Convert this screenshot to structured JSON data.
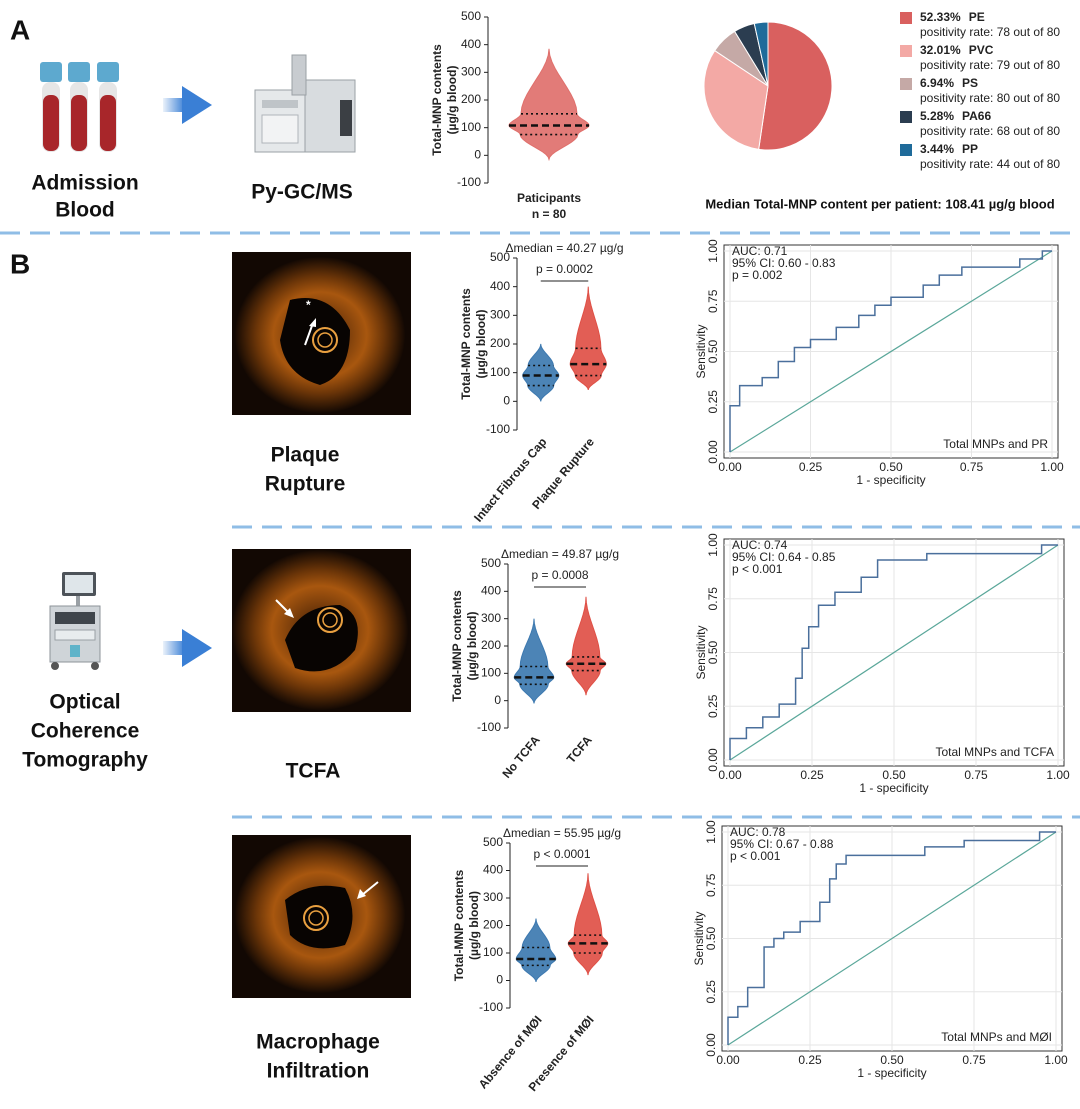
{
  "figure": {
    "panel_a": "A",
    "panel_b": "B",
    "admission_blood": [
      "Admission",
      "Blood"
    ],
    "pygcms": "Py-GC/MS",
    "oct": [
      "Optical",
      "Coherence",
      "Tomography"
    ],
    "plaque_rupture": [
      "Plaque",
      "Rupture"
    ],
    "tcfa": "TCFA",
    "macrophage": [
      "Macrophage",
      "Infiltration"
    ],
    "median_note": "Median Total-MNP content per patient: 108.41 µg/g blood"
  },
  "chart_data": [
    {
      "type": "violin",
      "y_label": [
        "Total-MNP contents",
        "(µg/g  blood)"
      ],
      "categories": [
        "Paticipants"
      ],
      "category_note": "n = 80",
      "groups": [
        {
          "color": "#e0706c",
          "min": -15,
          "q1": 75,
          "median": 108,
          "q3": 150,
          "max": 385
        }
      ],
      "ylim": [
        -100,
        500
      ],
      "yticks": [
        -100,
        0,
        100,
        200,
        300,
        400,
        500
      ]
    },
    {
      "type": "pie",
      "labels": [
        "PE",
        "PVC",
        "PS",
        "PA66",
        "PP"
      ],
      "values": [
        52.33,
        32.01,
        6.94,
        5.28,
        3.44
      ],
      "value_labels": [
        "52.33%",
        "32.01%",
        "6.94%",
        "5.28%",
        "3.44%"
      ],
      "colors": [
        "#d9605f",
        "#f3a9a5",
        "#c5a9a6",
        "#2b3d50",
        "#1f6b9a"
      ],
      "notes": [
        "positivity rate: 78 out of 80",
        "positivity rate: 79 out of 80",
        "positivity rate: 80 out of 80",
        "positivity rate: 68 out of 80",
        "positivity rate: 44 out of 80"
      ]
    },
    {
      "type": "violin",
      "y_label": [
        "Total-MNP contents",
        "(µg/g  blood)"
      ],
      "annotation": "Δmedian = 40.27 µg/g",
      "p_value": "p = 0.0002",
      "categories": [
        "Intact Fibrous Cap",
        "Plaque Rupture"
      ],
      "groups": [
        {
          "color": "#3d79b0",
          "min": 0,
          "q1": 55,
          "median": 90,
          "q3": 125,
          "max": 200
        },
        {
          "color": "#df5046",
          "min": 40,
          "q1": 90,
          "median": 130,
          "q3": 185,
          "max": 400
        }
      ],
      "ylim": [
        -100,
        500
      ],
      "yticks": [
        -100,
        0,
        100,
        200,
        300,
        400,
        500
      ]
    },
    {
      "type": "line",
      "title": "Total MNPs and PR",
      "annotations": [
        "AUC: 0.71",
        "95% CI: 0.60 - 0.83",
        "p = 0.002"
      ],
      "xlabel": "1 - specificity",
      "ylabel": "Sensitivity",
      "x": [
        0,
        0,
        0.03,
        0.03,
        0.1,
        0.1,
        0.15,
        0.15,
        0.2,
        0.2,
        0.25,
        0.25,
        0.33,
        0.33,
        0.4,
        0.4,
        0.45,
        0.45,
        0.5,
        0.5,
        0.6,
        0.6,
        0.65,
        0.65,
        0.72,
        0.72,
        0.9,
        0.9,
        0.97,
        0.97,
        1
      ],
      "series": [
        {
          "color": "#4a6f9c",
          "values": [
            0,
            0.23,
            0.23,
            0.33,
            0.33,
            0.37,
            0.37,
            0.45,
            0.45,
            0.52,
            0.52,
            0.56,
            0.56,
            0.62,
            0.62,
            0.68,
            0.68,
            0.73,
            0.73,
            0.77,
            0.77,
            0.83,
            0.83,
            0.88,
            0.88,
            0.92,
            0.92,
            0.96,
            0.96,
            1,
            1
          ]
        }
      ],
      "xlim": [
        0,
        1
      ],
      "ylim": [
        0,
        1
      ],
      "xticks": [
        {
          "value": 0,
          "label": "0.00"
        },
        0.25,
        {
          "value": 0.5,
          "label": "0.50"
        },
        0.75,
        {
          "value": 1,
          "label": "1.00"
        }
      ],
      "yticks": [
        {
          "value": 0,
          "label": "0.00"
        },
        0.25,
        {
          "value": 0.5,
          "label": "0.50"
        },
        0.75,
        {
          "value": 1,
          "label": "1.00"
        }
      ],
      "grid": true
    },
    {
      "type": "violin",
      "y_label": [
        "Total-MNP contents",
        "(µg/g  blood)"
      ],
      "annotation": "Δmedian = 49.87 µg/g",
      "p_value": "p = 0.0008",
      "categories": [
        "No TCFA",
        "TCFA"
      ],
      "groups": [
        {
          "color": "#3d79b0",
          "min": -10,
          "q1": 60,
          "median": 85,
          "q3": 125,
          "max": 300
        },
        {
          "color": "#df5046",
          "min": 20,
          "q1": 110,
          "median": 135,
          "q3": 160,
          "max": 380
        }
      ],
      "ylim": [
        -100,
        500
      ],
      "yticks": [
        -100,
        0,
        100,
        200,
        300,
        400,
        500
      ]
    },
    {
      "type": "line",
      "title": "Total MNPs and TCFA",
      "annotations": [
        "AUC: 0.74",
        "95% CI: 0.64 - 0.85",
        "p < 0.001"
      ],
      "xlabel": "1 - specificity",
      "ylabel": "Sensitivity",
      "x": [
        0,
        0,
        0.05,
        0.05,
        0.1,
        0.1,
        0.15,
        0.15,
        0.2,
        0.2,
        0.22,
        0.22,
        0.24,
        0.24,
        0.27,
        0.27,
        0.32,
        0.32,
        0.4,
        0.4,
        0.45,
        0.45,
        0.6,
        0.6,
        0.95,
        0.95,
        1
      ],
      "series": [
        {
          "color": "#4a6f9c",
          "values": [
            0,
            0.1,
            0.1,
            0.15,
            0.15,
            0.2,
            0.2,
            0.26,
            0.26,
            0.38,
            0.38,
            0.52,
            0.52,
            0.62,
            0.62,
            0.72,
            0.72,
            0.78,
            0.78,
            0.85,
            0.85,
            0.93,
            0.93,
            0.96,
            0.96,
            1,
            1
          ]
        }
      ],
      "xlim": [
        0,
        1
      ],
      "ylim": [
        0,
        1
      ],
      "xticks": [
        {
          "value": 0,
          "label": "0.00"
        },
        0.25,
        {
          "value": 0.5,
          "label": "0.50"
        },
        0.75,
        {
          "value": 1,
          "label": "1.00"
        }
      ],
      "yticks": [
        {
          "value": 0,
          "label": "0.00"
        },
        0.25,
        {
          "value": 0.5,
          "label": "0.50"
        },
        0.75,
        {
          "value": 1,
          "label": "1.00"
        }
      ],
      "grid": true
    },
    {
      "type": "violin",
      "y_label": [
        "Total-MNP contents",
        "(µg/g  blood)"
      ],
      "annotation": "Δmedian = 55.95 µg/g",
      "p_value": "p < 0.0001",
      "categories": [
        "Absence of MØI",
        "Presence of MØI"
      ],
      "groups": [
        {
          "color": "#3d79b0",
          "min": -5,
          "q1": 55,
          "median": 78,
          "q3": 120,
          "max": 225
        },
        {
          "color": "#df5046",
          "min": 20,
          "q1": 100,
          "median": 135,
          "q3": 165,
          "max": 390
        }
      ],
      "ylim": [
        -100,
        500
      ],
      "yticks": [
        -100,
        0,
        100,
        200,
        300,
        400,
        500
      ]
    },
    {
      "type": "line",
      "title": "Total MNPs and MØI",
      "annotations": [
        "AUC: 0.78",
        "95% CI: 0.67 - 0.88",
        "p < 0.001"
      ],
      "xlabel": "1 - specificity",
      "ylabel": "Sensitivity",
      "x": [
        0,
        0,
        0.03,
        0.03,
        0.06,
        0.06,
        0.11,
        0.11,
        0.14,
        0.14,
        0.17,
        0.17,
        0.22,
        0.22,
        0.28,
        0.28,
        0.31,
        0.31,
        0.33,
        0.33,
        0.36,
        0.36,
        0.6,
        0.6,
        0.72,
        0.72,
        0.95,
        0.95,
        1
      ],
      "series": [
        {
          "color": "#4a6f9c",
          "values": [
            0,
            0.13,
            0.13,
            0.18,
            0.18,
            0.27,
            0.27,
            0.46,
            0.46,
            0.5,
            0.5,
            0.53,
            0.53,
            0.58,
            0.58,
            0.67,
            0.67,
            0.78,
            0.78,
            0.85,
            0.85,
            0.89,
            0.89,
            0.93,
            0.93,
            0.96,
            0.96,
            1,
            1
          ]
        }
      ],
      "xlim": [
        0,
        1
      ],
      "ylim": [
        0,
        1
      ],
      "xticks": [
        {
          "value": 0,
          "label": "0.00"
        },
        0.25,
        {
          "value": 0.5,
          "label": "0.50"
        },
        0.75,
        {
          "value": 1,
          "label": "1.00"
        }
      ],
      "yticks": [
        {
          "value": 0,
          "label": "0.00"
        },
        0.25,
        {
          "value": 0.5,
          "label": "0.50"
        },
        0.75,
        {
          "value": 1,
          "label": "1.00"
        }
      ],
      "grid": true
    }
  ]
}
